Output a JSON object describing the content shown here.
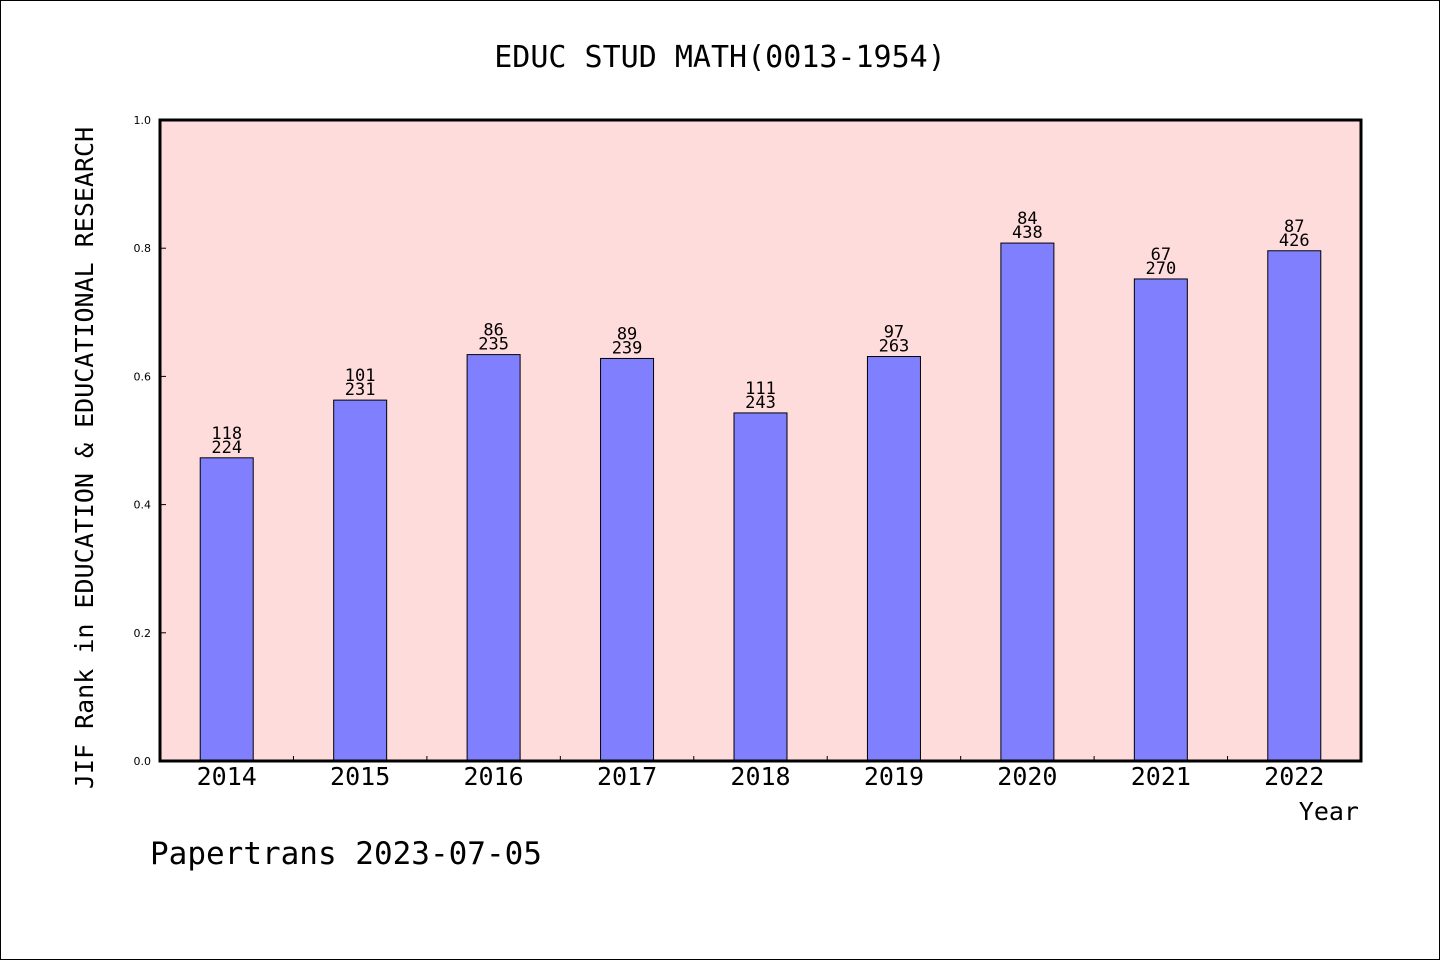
{
  "chart_data": {
    "type": "bar",
    "title": "EDUC STUD MATH(0013-1954)",
    "xlabel": "Year",
    "ylabel": "JIF Rank in EDUCATION & EDUCATIONAL RESEARCH",
    "categories": [
      "2014",
      "2015",
      "2016",
      "2017",
      "2018",
      "2019",
      "2020",
      "2021",
      "2022"
    ],
    "values": [
      0.473,
      0.563,
      0.634,
      0.628,
      0.543,
      0.631,
      0.808,
      0.752,
      0.796
    ],
    "ranks": [
      "118",
      "101",
      "86",
      "89",
      "111",
      "97",
      "84",
      "67",
      "87"
    ],
    "totals": [
      "224",
      "231",
      "235",
      "239",
      "243",
      "263",
      "438",
      "270",
      "426"
    ],
    "ylim": [
      0,
      1.0
    ],
    "yticks": [
      "0.0",
      "0.2",
      "0.4",
      "0.6",
      "0.8",
      "1.0"
    ],
    "grid": false,
    "colors": {
      "plot_bg": "#ffdcdc",
      "bar": "#8080ff",
      "axis": "#000000"
    }
  },
  "footer": {
    "text": "Papertrans 2023-07-05"
  }
}
